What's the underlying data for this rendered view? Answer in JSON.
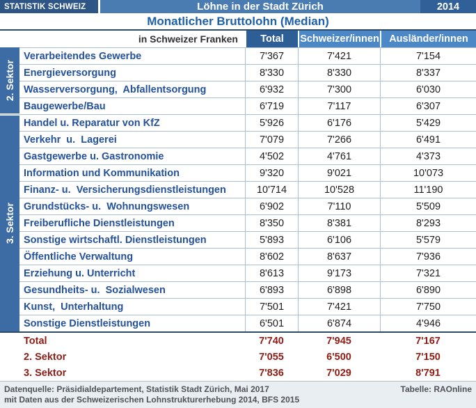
{
  "header": {
    "brand": "STATISTIK SCHWEIZ",
    "title": "Löhne in der Stadt Zürich",
    "year": "2014",
    "subtitle": "Monatlicher Bruttolohn (Median)"
  },
  "table": {
    "unit_label": "in Schweizer Franken",
    "columns": [
      "Total",
      "Schweizer/innen",
      "Ausländer/innen"
    ],
    "sectors": [
      {
        "label": "2. Sektor",
        "row_count": 4
      },
      {
        "label": "3. Sektor",
        "row_count": 13
      }
    ],
    "rows": [
      {
        "label": "Verarbeitendes Gewerbe",
        "total": "7'367",
        "swiss": "7'421",
        "foreign": "7'154"
      },
      {
        "label": "Energieversorgung",
        "total": "8'330",
        "swiss": "8'330",
        "foreign": "8'337"
      },
      {
        "label": "Wasserversorgung,  Abfallentsorgung",
        "total": "6'932",
        "swiss": "7'300",
        "foreign": "6'030"
      },
      {
        "label": "Baugewerbe/Bau",
        "total": "6'719",
        "swiss": "7'117",
        "foreign": "6'307"
      },
      {
        "label": "Handel u. Reparatur von KfZ",
        "total": "5'926",
        "swiss": "6'176",
        "foreign": "5'429"
      },
      {
        "label": "Verkehr  u.  Lagerei",
        "total": "7'079",
        "swiss": "7'266",
        "foreign": "6'491"
      },
      {
        "label": "Gastgewerbe u. Gastronomie",
        "total": "4'502",
        "swiss": "4'761",
        "foreign": "4'373"
      },
      {
        "label": "Information und Kommunikation",
        "total": "9'320",
        "swiss": "9'021",
        "foreign": "10'073"
      },
      {
        "label": "Finanz- u.  Versicherungsdienstleistungen",
        "total": "10'714",
        "swiss": "10'528",
        "foreign": "11'190"
      },
      {
        "label": "Grundstücks- u.  Wohnungswesen",
        "total": "6'902",
        "swiss": "7'110",
        "foreign": "5'509"
      },
      {
        "label": "Freiberufliche Dienstleistungen",
        "total": "8'350",
        "swiss": "8'381",
        "foreign": "8'293"
      },
      {
        "label": "Sonstige wirtschaftl. Dienstleistungen",
        "total": "5'893",
        "swiss": "6'106",
        "foreign": "5'579"
      },
      {
        "label": "Öffentliche Verwaltung",
        "total": "8'602",
        "swiss": "8'637",
        "foreign": "7'936"
      },
      {
        "label": "Erziehung u. Unterricht",
        "total": "8'613",
        "swiss": "9'173",
        "foreign": "7'321"
      },
      {
        "label": "Gesundheits- u.  Sozialwesen",
        "total": "6'893",
        "swiss": "6'898",
        "foreign": "6'890"
      },
      {
        "label": "Kunst,  Unterhaltung",
        "total": "7'501",
        "swiss": "7'421",
        "foreign": "7'750"
      },
      {
        "label": "Sonstige Dienstleistungen",
        "total": "6'501",
        "swiss": "6'874",
        "foreign": "4'946"
      }
    ],
    "summary": [
      {
        "label": "Total",
        "total": "7'740",
        "swiss": "7'945",
        "foreign": "7'167"
      },
      {
        "label": "2. Sektor",
        "total": "7'055",
        "swiss": "6'500",
        "foreign": "7'150"
      },
      {
        "label": "3. Sektor",
        "total": "7'836",
        "swiss": "7'029",
        "foreign": "8'791"
      }
    ]
  },
  "footer": {
    "source_line1": "Datenquelle: Präsidialdepartement, Statistik Stadt Zürich, Mai 2017",
    "source_line2": "mit Daten aus der Schweizerischen Lohnstrukturerhebung 2014, BFS 2015",
    "credit": "Tabelle: RAOnline"
  },
  "colors": {
    "brand_box": "#2d5686",
    "title_bar": "#4a7cb1",
    "year_box": "#315f97",
    "subtitle_text": "#1d5fa8",
    "header_dark": "#2d5f96",
    "header_light": "#4c87c6",
    "sector_strip": "#3d6ba3",
    "row_label_text": "#24519c",
    "summary_text": "#8e1d15",
    "grid_line": "#a9bfd4",
    "footer_bg": "#e9eef3"
  },
  "chart_data": {
    "type": "table",
    "title": "Löhne in der Stadt Zürich — Monatlicher Bruttolohn (Median), 2014, in Schweizer Franken",
    "columns": [
      "Total",
      "Schweizer/innen",
      "Ausländer/innen"
    ],
    "rows": [
      {
        "sector": "2. Sektor",
        "category": "Verarbeitendes Gewerbe",
        "values": [
          7367,
          7421,
          7154
        ]
      },
      {
        "sector": "2. Sektor",
        "category": "Energieversorgung",
        "values": [
          8330,
          8330,
          8337
        ]
      },
      {
        "sector": "2. Sektor",
        "category": "Wasserversorgung, Abfallentsorgung",
        "values": [
          6932,
          7300,
          6030
        ]
      },
      {
        "sector": "2. Sektor",
        "category": "Baugewerbe/Bau",
        "values": [
          6719,
          7117,
          6307
        ]
      },
      {
        "sector": "3. Sektor",
        "category": "Handel u. Reparatur von KfZ",
        "values": [
          5926,
          6176,
          5429
        ]
      },
      {
        "sector": "3. Sektor",
        "category": "Verkehr u. Lagerei",
        "values": [
          7079,
          7266,
          6491
        ]
      },
      {
        "sector": "3. Sektor",
        "category": "Gastgewerbe u. Gastronomie",
        "values": [
          4502,
          4761,
          4373
        ]
      },
      {
        "sector": "3. Sektor",
        "category": "Information und Kommunikation",
        "values": [
          9320,
          9021,
          10073
        ]
      },
      {
        "sector": "3. Sektor",
        "category": "Finanz- u. Versicherungsdienstleistungen",
        "values": [
          10714,
          10528,
          11190
        ]
      },
      {
        "sector": "3. Sektor",
        "category": "Grundstücks- u. Wohnungswesen",
        "values": [
          6902,
          7110,
          5509
        ]
      },
      {
        "sector": "3. Sektor",
        "category": "Freiberufliche Dienstleistungen",
        "values": [
          8350,
          8381,
          8293
        ]
      },
      {
        "sector": "3. Sektor",
        "category": "Sonstige wirtschaftl. Dienstleistungen",
        "values": [
          5893,
          6106,
          5579
        ]
      },
      {
        "sector": "3. Sektor",
        "category": "Öffentliche Verwaltung",
        "values": [
          8602,
          8637,
          7936
        ]
      },
      {
        "sector": "3. Sektor",
        "category": "Erziehung u. Unterricht",
        "values": [
          8613,
          9173,
          7321
        ]
      },
      {
        "sector": "3. Sektor",
        "category": "Gesundheits- u. Sozialwesen",
        "values": [
          6893,
          6898,
          6890
        ]
      },
      {
        "sector": "3. Sektor",
        "category": "Kunst, Unterhaltung",
        "values": [
          7501,
          7421,
          7750
        ]
      },
      {
        "sector": "3. Sektor",
        "category": "Sonstige Dienstleistungen",
        "values": [
          6501,
          6874,
          4946
        ]
      },
      {
        "sector": "summary",
        "category": "Total",
        "values": [
          7740,
          7945,
          7167
        ]
      },
      {
        "sector": "summary",
        "category": "2. Sektor",
        "values": [
          7055,
          6500,
          7150
        ]
      },
      {
        "sector": "summary",
        "category": "3. Sektor",
        "values": [
          7836,
          7029,
          8791
        ]
      }
    ]
  }
}
